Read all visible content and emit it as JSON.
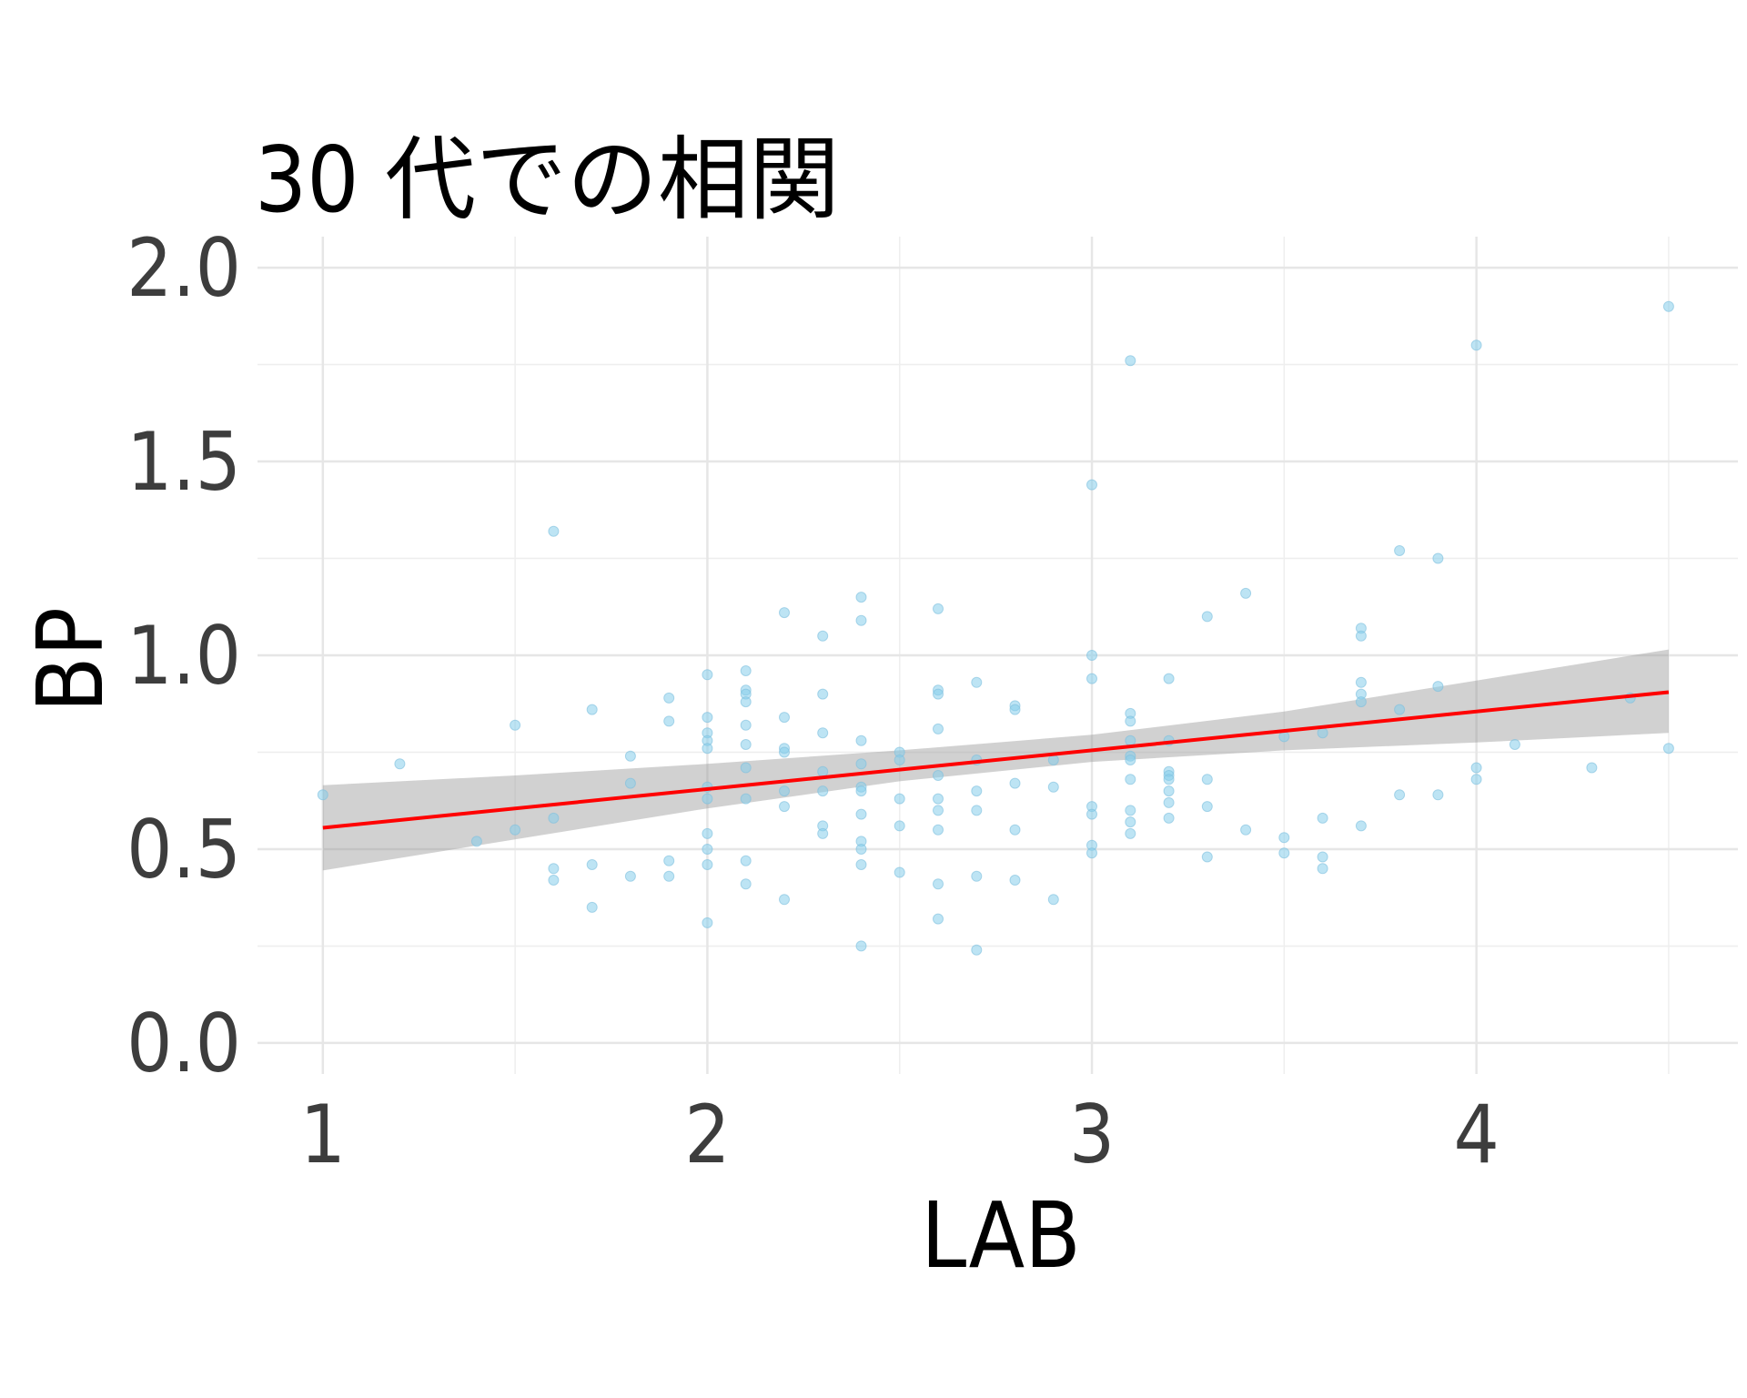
{
  "chart_data": {
    "type": "scatter",
    "title": "30 代での相関",
    "xlabel": "LAB",
    "ylabel": "BP",
    "xlim": [
      0.83,
      4.68
    ],
    "ylim": [
      -0.08,
      2.08
    ],
    "x_ticks": [
      1,
      2,
      3,
      4
    ],
    "x_tick_labels": [
      "1",
      "2",
      "3",
      "4"
    ],
    "y_ticks": [
      0.0,
      0.5,
      1.0,
      1.5,
      2.0
    ],
    "y_tick_labels": [
      "0.0",
      "0.5",
      "1.0",
      "1.5",
      "2.0"
    ],
    "x_minor_ticks": [
      1.5,
      2.5,
      3.5,
      4.5
    ],
    "y_minor_ticks": [
      0.25,
      0.75,
      1.25,
      1.75
    ],
    "grid": true,
    "point_color": "#87ceeb",
    "fit_color": "#ff0000",
    "band_color": "#999999",
    "fit_line": {
      "x": [
        1.0,
        4.5
      ],
      "y": [
        0.555,
        0.905
      ]
    },
    "confidence_band": {
      "x": [
        1.0,
        1.5,
        2.0,
        2.5,
        3.0,
        3.5,
        4.0,
        4.5
      ],
      "lower": [
        0.445,
        0.525,
        0.605,
        0.675,
        0.725,
        0.755,
        0.775,
        0.8
      ],
      "upper": [
        0.665,
        0.69,
        0.72,
        0.755,
        0.795,
        0.855,
        0.935,
        1.015
      ]
    },
    "points": [
      [
        1.0,
        0.64
      ],
      [
        1.2,
        0.72
      ],
      [
        1.4,
        0.52
      ],
      [
        1.5,
        0.82
      ],
      [
        1.5,
        0.55
      ],
      [
        1.6,
        1.32
      ],
      [
        1.6,
        0.58
      ],
      [
        1.6,
        0.45
      ],
      [
        1.6,
        0.42
      ],
      [
        1.7,
        0.86
      ],
      [
        1.7,
        0.46
      ],
      [
        1.7,
        0.35
      ],
      [
        1.8,
        0.74
      ],
      [
        1.8,
        0.67
      ],
      [
        1.8,
        0.43
      ],
      [
        1.9,
        0.89
      ],
      [
        1.9,
        0.83
      ],
      [
        1.9,
        0.47
      ],
      [
        1.9,
        0.43
      ],
      [
        2.0,
        0.95
      ],
      [
        2.0,
        0.84
      ],
      [
        2.0,
        0.8
      ],
      [
        2.0,
        0.78
      ],
      [
        2.0,
        0.76
      ],
      [
        2.0,
        0.66
      ],
      [
        2.0,
        0.63
      ],
      [
        2.0,
        0.54
      ],
      [
        2.0,
        0.5
      ],
      [
        2.0,
        0.46
      ],
      [
        2.0,
        0.31
      ],
      [
        2.1,
        0.96
      ],
      [
        2.1,
        0.91
      ],
      [
        2.1,
        0.9
      ],
      [
        2.1,
        0.88
      ],
      [
        2.1,
        0.82
      ],
      [
        2.1,
        0.77
      ],
      [
        2.1,
        0.71
      ],
      [
        2.1,
        0.63
      ],
      [
        2.1,
        0.47
      ],
      [
        2.1,
        0.41
      ],
      [
        2.2,
        1.11
      ],
      [
        2.2,
        0.84
      ],
      [
        2.2,
        0.76
      ],
      [
        2.2,
        0.75
      ],
      [
        2.2,
        0.65
      ],
      [
        2.2,
        0.61
      ],
      [
        2.2,
        0.37
      ],
      [
        2.3,
        1.05
      ],
      [
        2.3,
        0.9
      ],
      [
        2.3,
        0.8
      ],
      [
        2.3,
        0.7
      ],
      [
        2.3,
        0.65
      ],
      [
        2.3,
        0.56
      ],
      [
        2.3,
        0.54
      ],
      [
        2.4,
        1.15
      ],
      [
        2.4,
        1.09
      ],
      [
        2.4,
        0.78
      ],
      [
        2.4,
        0.72
      ],
      [
        2.4,
        0.66
      ],
      [
        2.4,
        0.65
      ],
      [
        2.4,
        0.59
      ],
      [
        2.4,
        0.52
      ],
      [
        2.4,
        0.5
      ],
      [
        2.4,
        0.46
      ],
      [
        2.4,
        0.25
      ],
      [
        2.5,
        0.75
      ],
      [
        2.5,
        0.73
      ],
      [
        2.5,
        0.63
      ],
      [
        2.5,
        0.56
      ],
      [
        2.5,
        0.44
      ],
      [
        2.6,
        1.12
      ],
      [
        2.6,
        0.91
      ],
      [
        2.6,
        0.9
      ],
      [
        2.6,
        0.81
      ],
      [
        2.6,
        0.69
      ],
      [
        2.6,
        0.63
      ],
      [
        2.6,
        0.6
      ],
      [
        2.6,
        0.55
      ],
      [
        2.6,
        0.41
      ],
      [
        2.6,
        0.32
      ],
      [
        2.7,
        0.93
      ],
      [
        2.7,
        0.73
      ],
      [
        2.7,
        0.65
      ],
      [
        2.7,
        0.6
      ],
      [
        2.7,
        0.43
      ],
      [
        2.7,
        0.24
      ],
      [
        2.8,
        0.87
      ],
      [
        2.8,
        0.86
      ],
      [
        2.8,
        0.67
      ],
      [
        2.8,
        0.55
      ],
      [
        2.8,
        0.42
      ],
      [
        2.9,
        0.73
      ],
      [
        2.9,
        0.66
      ],
      [
        2.9,
        0.37
      ],
      [
        3.0,
        1.44
      ],
      [
        3.0,
        1.0
      ],
      [
        3.0,
        0.94
      ],
      [
        3.0,
        0.61
      ],
      [
        3.0,
        0.59
      ],
      [
        3.0,
        0.51
      ],
      [
        3.0,
        0.49
      ],
      [
        3.1,
        1.76
      ],
      [
        3.1,
        0.85
      ],
      [
        3.1,
        0.83
      ],
      [
        3.1,
        0.78
      ],
      [
        3.1,
        0.74
      ],
      [
        3.1,
        0.73
      ],
      [
        3.1,
        0.68
      ],
      [
        3.1,
        0.6
      ],
      [
        3.1,
        0.57
      ],
      [
        3.1,
        0.54
      ],
      [
        3.2,
        0.94
      ],
      [
        3.2,
        0.78
      ],
      [
        3.2,
        0.7
      ],
      [
        3.2,
        0.69
      ],
      [
        3.2,
        0.68
      ],
      [
        3.2,
        0.65
      ],
      [
        3.2,
        0.62
      ],
      [
        3.2,
        0.58
      ],
      [
        3.3,
        1.1
      ],
      [
        3.3,
        0.68
      ],
      [
        3.3,
        0.61
      ],
      [
        3.3,
        0.48
      ],
      [
        3.4,
        1.16
      ],
      [
        3.4,
        0.55
      ],
      [
        3.5,
        0.79
      ],
      [
        3.5,
        0.53
      ],
      [
        3.5,
        0.49
      ],
      [
        3.6,
        0.8
      ],
      [
        3.6,
        0.58
      ],
      [
        3.6,
        0.48
      ],
      [
        3.6,
        0.45
      ],
      [
        3.7,
        1.07
      ],
      [
        3.7,
        1.05
      ],
      [
        3.7,
        0.93
      ],
      [
        3.7,
        0.9
      ],
      [
        3.7,
        0.88
      ],
      [
        3.7,
        0.56
      ],
      [
        3.8,
        1.27
      ],
      [
        3.8,
        0.86
      ],
      [
        3.8,
        0.64
      ],
      [
        3.9,
        1.25
      ],
      [
        3.9,
        0.92
      ],
      [
        3.9,
        0.64
      ],
      [
        4.0,
        1.8
      ],
      [
        4.0,
        0.71
      ],
      [
        4.0,
        0.68
      ],
      [
        4.1,
        0.77
      ],
      [
        4.3,
        0.71
      ],
      [
        4.4,
        0.89
      ],
      [
        4.5,
        1.9
      ],
      [
        4.5,
        0.76
      ]
    ]
  }
}
